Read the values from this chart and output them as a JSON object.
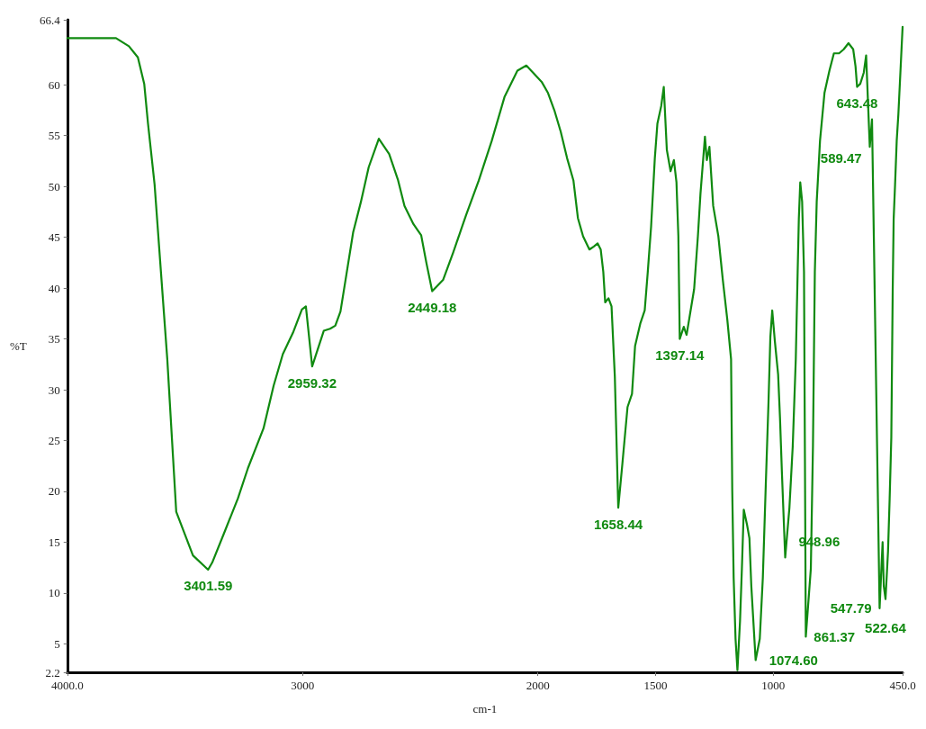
{
  "chart_data": {
    "type": "line",
    "xlabel": "cm-1",
    "ylabel": "%T",
    "color": "#108a10",
    "marker": "none",
    "line_style": "solid",
    "xlim": [
      4000,
      450
    ],
    "xticks": [
      {
        "value": 4000,
        "label": "4000.0"
      },
      3000,
      2000,
      1500,
      1000,
      {
        "value": 450,
        "label": "450.0"
      }
    ],
    "ylim": [
      2.2,
      66.4
    ],
    "yticks": [
      2.2,
      5,
      10,
      15,
      20,
      25,
      30,
      35,
      40,
      45,
      50,
      55,
      60,
      66.4
    ],
    "x": [
      4000,
      3793,
      3738,
      3700,
      3673,
      3657,
      3629,
      3602,
      3575,
      3537,
      3466,
      3401.59,
      3384,
      3330,
      3275,
      3232,
      3166,
      3123,
      3084,
      3041,
      3003,
      2986,
      2959.32,
      2910,
      2883,
      2861,
      2839,
      2812,
      2785,
      2752,
      2719,
      2676,
      2632,
      2594,
      2567,
      2529,
      2496,
      2474,
      2449.18,
      2403,
      2360,
      2305,
      2251,
      2196,
      2142,
      2087,
      2049,
      1984,
      1957,
      1930,
      1903,
      1876,
      1849,
      1830,
      1808,
      1781,
      1762,
      1746,
      1733,
      1722,
      1714,
      1700,
      1687,
      1673,
      1658.44,
      1641,
      1619,
      1600,
      1587,
      1565,
      1546,
      1533,
      1519,
      1503,
      1492,
      1476,
      1465,
      1452,
      1436,
      1422,
      1411,
      1403,
      1397.14,
      1380,
      1368,
      1336,
      1320,
      1309,
      1290,
      1282,
      1271,
      1255,
      1233,
      1214,
      1195,
      1179,
      1174,
      1168,
      1160,
      1152,
      1141,
      1133,
      1125,
      1111,
      1101,
      1093,
      1074.6,
      1057,
      1044,
      1031,
      1020,
      1012,
      1004,
      993,
      979,
      971,
      963,
      948.96,
      931,
      917,
      904,
      896,
      891,
      885,
      877,
      869,
      861.37,
      840,
      831,
      823,
      815,
      801,
      782,
      761,
      742,
      720,
      700,
      680,
      660,
      650,
      643.48,
      630,
      615,
      605,
      589.47,
      580,
      547.79,
      535,
      530,
      522.64,
      512,
      505,
      498,
      492,
      488,
      482,
      475,
      468,
      450
    ],
    "values": [
      64.6,
      64.6,
      63.8,
      62.7,
      60.1,
      56.2,
      50.2,
      41.6,
      33.0,
      18.0,
      13.7,
      12.3,
      13.0,
      16.1,
      19.3,
      22.3,
      26.2,
      30.4,
      33.5,
      35.6,
      37.9,
      38.2,
      32.3,
      35.8,
      36.0,
      36.3,
      37.7,
      41.6,
      45.5,
      48.5,
      51.9,
      54.7,
      53.2,
      50.6,
      48.1,
      46.3,
      45.2,
      42.5,
      39.7,
      40.8,
      43.5,
      47.2,
      50.6,
      54.5,
      58.8,
      61.4,
      61.9,
      60.3,
      59.2,
      57.5,
      55.4,
      52.8,
      50.6,
      46.9,
      45.1,
      43.8,
      44.1,
      44.4,
      43.8,
      41.6,
      38.6,
      39.0,
      38.2,
      31.3,
      18.4,
      22.7,
      28.3,
      29.6,
      34.3,
      36.5,
      37.8,
      41.6,
      46.0,
      52.8,
      56.2,
      57.9,
      59.8,
      53.6,
      51.5,
      52.6,
      50.4,
      45.1,
      35.0,
      36.2,
      35.4,
      39.9,
      45.1,
      49.3,
      54.9,
      52.6,
      53.9,
      48.1,
      45.1,
      40.8,
      36.9,
      33.0,
      20.1,
      11.5,
      5.5,
      2.4,
      7.2,
      12.4,
      18.2,
      16.7,
      15.4,
      10.7,
      3.4,
      5.5,
      11.5,
      21.0,
      28.7,
      35.2,
      37.8,
      34.8,
      31.5,
      27.2,
      21.9,
      13.5,
      18.4,
      24.4,
      33.0,
      41.6,
      46.8,
      50.4,
      48.5,
      41.6,
      5.7,
      12.4,
      24.4,
      41.6,
      48.5,
      54.5,
      59.2,
      61.4,
      63.1,
      63.1,
      63.5,
      64.1,
      63.5,
      61.8,
      59.8,
      60.1,
      61.2,
      62.9,
      53.9,
      56.6,
      8.5,
      15.0,
      10.7,
      9.4,
      14.1,
      19.3,
      25.3,
      39.9,
      46.8,
      50.2,
      54.5,
      57.1,
      65.7
    ],
    "annotations": [
      {
        "text": "3401.59",
        "x": 3401.59,
        "y": 12.3
      },
      {
        "text": "2959.32",
        "x": 2959.32,
        "y": 32.3
      },
      {
        "text": "2449.18",
        "x": 2449.18,
        "y": 39.7
      },
      {
        "text": "1658.44",
        "x": 1658.44,
        "y": 18.4
      },
      {
        "text": "1397.14",
        "x": 1397.14,
        "y": 35.0
      },
      {
        "text": "1074.60",
        "x": 1074.6,
        "y": 3.4
      },
      {
        "text": "948.96",
        "x": 948.96,
        "y": 13.5
      },
      {
        "text": "861.37",
        "x": 861.37,
        "y": 5.7
      },
      {
        "text": "643.48",
        "x": 643.48,
        "y": 59.8
      },
      {
        "text": "589.47",
        "x": 589.47,
        "y": 53.9
      },
      {
        "text": "547.79",
        "x": 547.79,
        "y": 8.5
      },
      {
        "text": "522.64",
        "x": 522.64,
        "y": 9.4
      }
    ]
  }
}
